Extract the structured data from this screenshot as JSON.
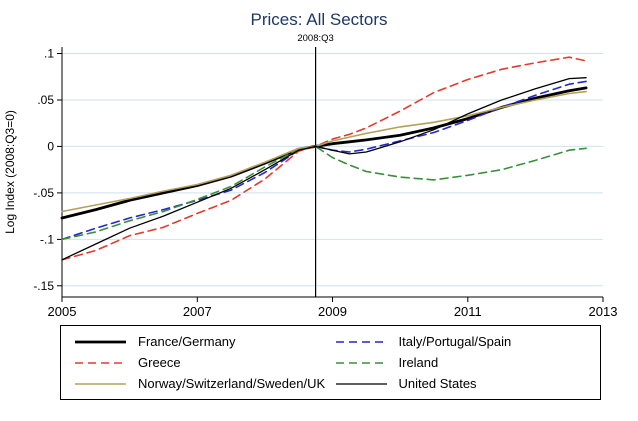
{
  "chart_data": {
    "type": "line",
    "title": "Prices: All Sectors",
    "title_color": "#1f3864",
    "ylabel": "Log Index (2008:Q3=0)",
    "xlabel": "",
    "grid": true,
    "grid_color": "#cfe2ef",
    "legend_position": "bottom",
    "xlim": [
      2005,
      2013
    ],
    "ylim": [
      -0.162,
      0.107
    ],
    "x_ticks": {
      "values": [
        2005,
        2007,
        2009,
        2011,
        2013
      ],
      "labels": [
        "2005",
        "2007",
        "2009",
        "2011",
        "2013"
      ]
    },
    "y_ticks": {
      "values": [
        0.1,
        0.05,
        0,
        -0.05,
        -0.1,
        -0.15
      ],
      "labels": [
        ".1",
        ".05",
        "0",
        "-.05",
        "-.1",
        "-.15"
      ]
    },
    "vline": {
      "x": 2008.75,
      "label": "2008:Q3"
    },
    "x": [
      2005,
      2005.5,
      2006,
      2006.5,
      2007,
      2007.5,
      2008,
      2008.5,
      2008.75,
      2009,
      2009.25,
      2009.5,
      2010,
      2010.5,
      2011,
      2011.5,
      2012,
      2012.5,
      2012.75
    ],
    "series": [
      {
        "name": "France/Germany",
        "color": "#000000",
        "width": 2.8,
        "dash": "",
        "values": [
          -0.077,
          -0.068,
          -0.058,
          -0.05,
          -0.042,
          -0.032,
          -0.018,
          -0.003,
          0,
          0.003,
          0.005,
          0.007,
          0.012,
          0.02,
          0.03,
          0.042,
          0.052,
          0.06,
          0.063
        ]
      },
      {
        "name": "Italy/Portugal/Spain",
        "color": "#2626cf",
        "width": 1.6,
        "dash": "8,5",
        "values": [
          -0.1,
          -0.088,
          -0.077,
          -0.068,
          -0.058,
          -0.047,
          -0.028,
          -0.004,
          0,
          -0.004,
          -0.006,
          -0.003,
          0.006,
          0.015,
          0.028,
          0.042,
          0.055,
          0.067,
          0.07
        ]
      },
      {
        "name": "Greece",
        "color": "#e43a2e",
        "width": 1.6,
        "dash": "8,5",
        "values": [
          -0.122,
          -0.112,
          -0.096,
          -0.087,
          -0.072,
          -0.058,
          -0.035,
          -0.005,
          0,
          0.008,
          0.013,
          0.02,
          0.038,
          0.058,
          0.072,
          0.083,
          0.09,
          0.096,
          0.092
        ]
      },
      {
        "name": "Ireland",
        "color": "#3a8f3a",
        "width": 1.6,
        "dash": "8,5",
        "values": [
          -0.1,
          -0.092,
          -0.08,
          -0.07,
          -0.057,
          -0.043,
          -0.022,
          -0.003,
          0,
          -0.012,
          -0.02,
          -0.027,
          -0.033,
          -0.036,
          -0.031,
          -0.025,
          -0.015,
          -0.004,
          -0.002
        ]
      },
      {
        "name": "Norway/Switzerland/Sweden/UK",
        "color": "#b4a05a",
        "width": 1.6,
        "dash": "",
        "values": [
          -0.07,
          -0.063,
          -0.056,
          -0.048,
          -0.041,
          -0.031,
          -0.017,
          -0.002,
          0,
          0.006,
          0.01,
          0.014,
          0.021,
          0.026,
          0.033,
          0.042,
          0.05,
          0.057,
          0.059
        ]
      },
      {
        "name": "United States",
        "color": "#000000",
        "width": 1.3,
        "dash": "",
        "values": [
          -0.122,
          -0.105,
          -0.088,
          -0.075,
          -0.06,
          -0.045,
          -0.025,
          -0.004,
          0,
          -0.004,
          -0.008,
          -0.006,
          0.005,
          0.018,
          0.035,
          0.05,
          0.062,
          0.073,
          0.074
        ]
      }
    ]
  }
}
